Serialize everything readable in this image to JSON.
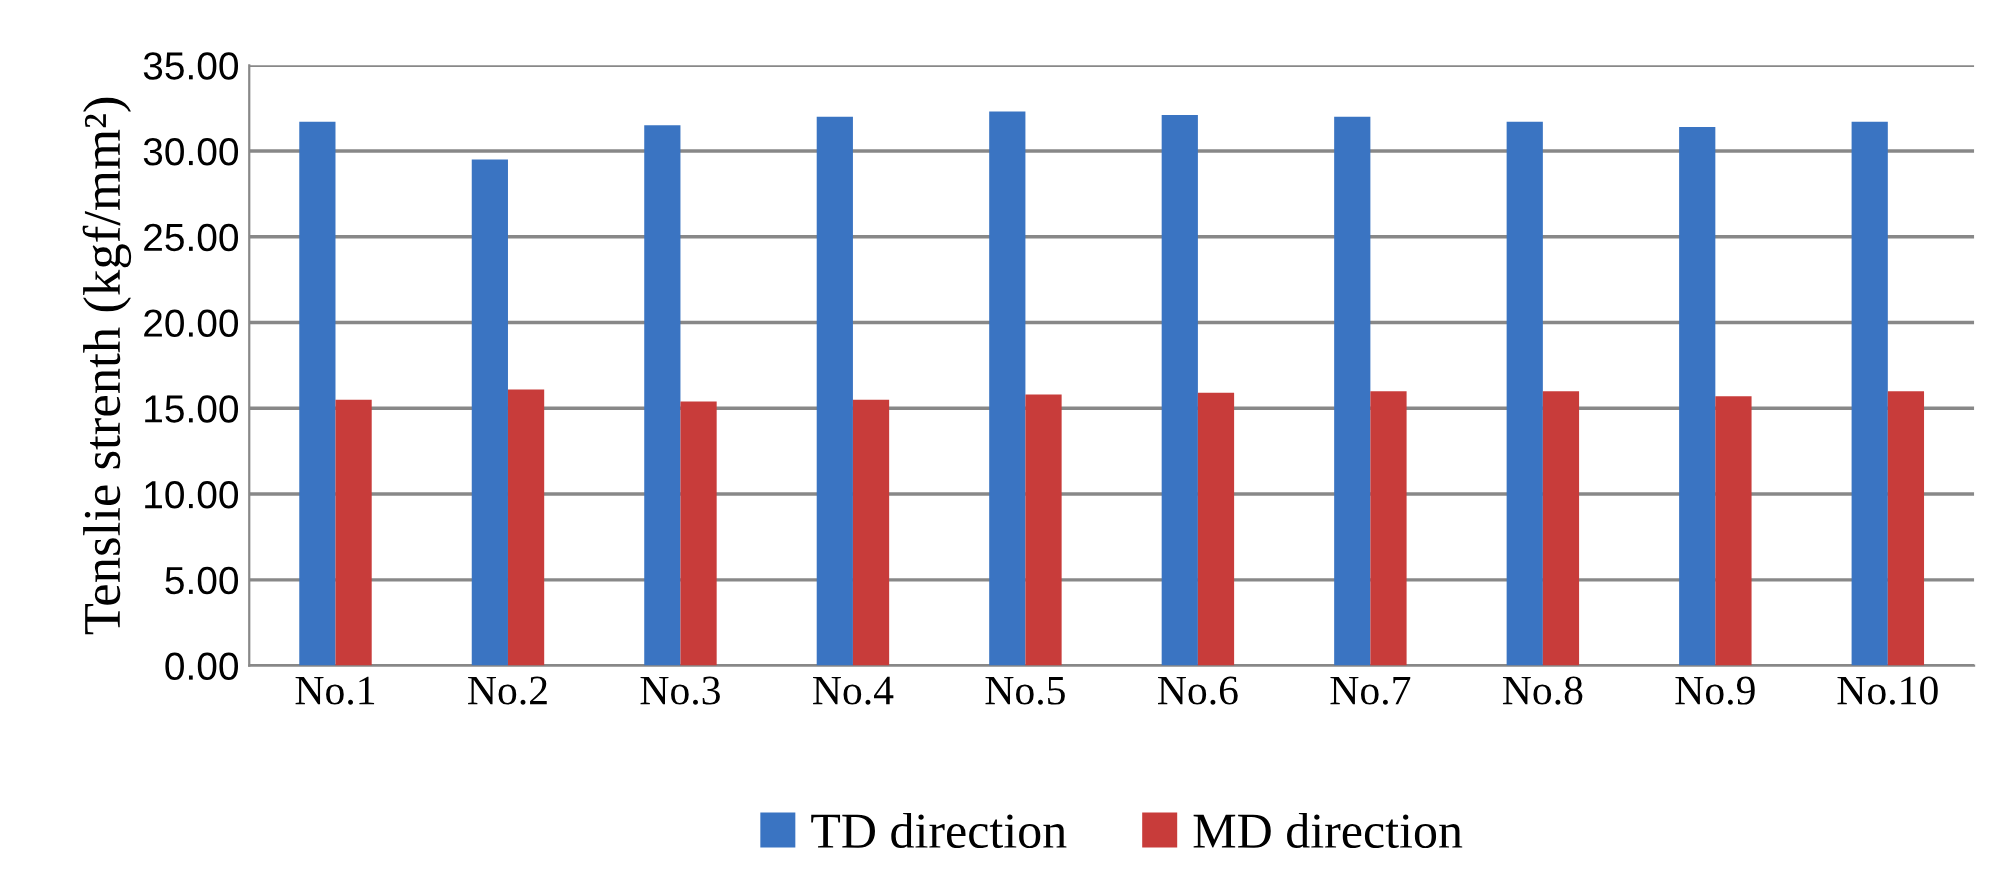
{
  "chart_data": {
    "type": "bar",
    "ylabel": "Tenslie strenth (kgf/mm²)",
    "categories": [
      "No.1",
      "No.2",
      "No.3",
      "No.4",
      "No.5",
      "No.6",
      "No.7",
      "No.8",
      "No.9",
      "No.10"
    ],
    "series": [
      {
        "name": "TD direction",
        "color": "#3a74c2",
        "values": [
          31.7,
          29.5,
          31.5,
          32.0,
          32.3,
          32.1,
          32.0,
          31.7,
          31.4,
          31.7
        ]
      },
      {
        "name": "MD direction",
        "color": "#c83c3a",
        "values": [
          15.5,
          16.1,
          15.4,
          15.5,
          15.8,
          15.9,
          16.0,
          16.0,
          15.7,
          16.0
        ]
      }
    ],
    "ylim": [
      0,
      35
    ],
    "yticks": [
      {
        "value": 0,
        "label": "0.00"
      },
      {
        "value": 5,
        "label": "5.00"
      },
      {
        "value": 10,
        "label": "10.00"
      },
      {
        "value": 15,
        "label": "15.00"
      },
      {
        "value": 20,
        "label": "20.00"
      },
      {
        "value": 25,
        "label": "25.00"
      },
      {
        "value": 30,
        "label": "30.00"
      },
      {
        "value": 35,
        "label": "35.00"
      }
    ],
    "grid": "y",
    "legend": "bottom"
  }
}
